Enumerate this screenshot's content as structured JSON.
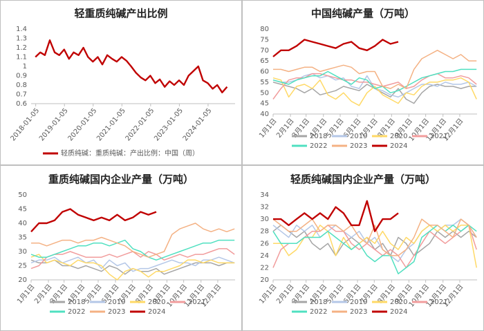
{
  "chart_data": [
    {
      "type": "line",
      "title": "轻重质纯碱产出比例",
      "x": [
        2018.0,
        2018.17,
        2018.33,
        2018.5,
        2018.67,
        2018.83,
        2019.0,
        2019.17,
        2019.33,
        2019.5,
        2019.67,
        2019.83,
        2020.0,
        2020.17,
        2020.33,
        2020.5,
        2020.67,
        2020.83,
        2021.0,
        2021.17,
        2021.33,
        2021.5,
        2021.67,
        2021.83,
        2022.0,
        2022.17,
        2022.33,
        2022.5,
        2022.67,
        2022.83,
        2023.0,
        2023.17,
        2023.33,
        2023.5,
        2023.67,
        2023.83,
        2024.0,
        2024.17,
        2024.33,
        2024.5,
        2024.67
      ],
      "series": [
        {
          "name": "轻质纯碱：重质纯碱：产出比例：中国（周）",
          "color": "#c00000",
          "values": [
            1.1,
            1.15,
            1.12,
            1.28,
            1.15,
            1.12,
            1.18,
            1.08,
            1.15,
            1.12,
            1.2,
            1.1,
            1.05,
            1.1,
            1.02,
            1.12,
            1.08,
            1.05,
            1.1,
            1.06,
            1.0,
            0.93,
            0.88,
            0.85,
            0.9,
            0.82,
            0.86,
            0.78,
            0.84,
            0.8,
            0.85,
            0.8,
            0.9,
            0.95,
            1.0,
            0.85,
            0.82,
            0.76,
            0.8,
            0.72,
            0.78
          ]
        }
      ],
      "xlim": [
        2017.85,
        2024.95
      ],
      "xticks": [
        {
          "value": 2018.01,
          "label": "2018-01-05"
        },
        {
          "value": 2019.01,
          "label": "2019-01-05"
        },
        {
          "value": 2020.01,
          "label": "2020-01-05"
        },
        {
          "value": 2021.01,
          "label": "2021-01-05"
        },
        {
          "value": 2022.01,
          "label": "2022-01-05"
        },
        {
          "value": 2023.01,
          "label": "2023-01-05"
        },
        {
          "value": 2024.01,
          "label": "2024-01-05"
        }
      ],
      "ylim": [
        0.6,
        1.4
      ],
      "yticks": [
        0.6,
        0.7,
        0.8,
        0.9,
        1,
        1.1,
        1.2,
        1.3,
        1.4
      ]
    },
    {
      "type": "line",
      "title": "中国纯碱产量（万吨）",
      "x": [
        1,
        15,
        29,
        43,
        57,
        71,
        85,
        99,
        113,
        127,
        141,
        155,
        169,
        183,
        197,
        211,
        225,
        239,
        253,
        267,
        281,
        295,
        309,
        323,
        337,
        351,
        365
      ],
      "series": [
        {
          "name": "2018",
          "color": "#a5a5a5",
          "values": [
            55,
            54,
            53,
            52,
            50,
            52,
            49,
            50,
            51,
            53,
            52,
            51,
            54,
            52,
            50,
            48,
            52,
            47,
            45,
            50,
            53,
            54,
            53,
            53,
            52,
            53,
            53
          ]
        },
        {
          "name": "2019",
          "color": "#b4c7e7",
          "values": [
            56,
            55,
            55,
            56,
            58,
            59,
            57,
            58,
            56,
            57,
            53,
            52,
            58,
            52,
            51,
            49,
            48,
            50,
            52,
            54,
            54,
            53,
            55,
            54,
            54,
            55,
            53
          ]
        },
        {
          "name": "2020",
          "color": "#ffd966",
          "values": [
            57,
            56,
            48,
            53,
            54,
            52,
            56,
            49,
            47,
            50,
            46,
            44,
            50,
            53,
            49,
            47,
            45,
            50,
            49,
            53,
            55,
            55,
            56,
            56,
            57,
            55,
            47
          ]
        },
        {
          "name": "2021",
          "color": "#f19c9c",
          "values": [
            47,
            52,
            56,
            57,
            57,
            59,
            59,
            58,
            57,
            56,
            56,
            55,
            55,
            54,
            53,
            54,
            55,
            52,
            53,
            56,
            58,
            59,
            57,
            57,
            58,
            57,
            54
          ]
        },
        {
          "name": "2022",
          "color": "#4fe0c0",
          "values": [
            56,
            55,
            54,
            56,
            57,
            58,
            58,
            60,
            58,
            56,
            54,
            57,
            56,
            52,
            53,
            50,
            51,
            53,
            55,
            57,
            58,
            59,
            60,
            60,
            61,
            61,
            61
          ]
        },
        {
          "name": "2023",
          "color": "#f4b183",
          "values": [
            61,
            61,
            60,
            61,
            62,
            62,
            60,
            61,
            62,
            63,
            62,
            59,
            60,
            60,
            53,
            52,
            54,
            52,
            61,
            66,
            68,
            70,
            68,
            66,
            68,
            65,
            65
          ]
        },
        {
          "name": "2024",
          "color": "#c00000",
          "values": [
            67,
            70,
            70,
            72,
            75,
            74,
            73,
            72,
            71,
            73,
            74,
            71,
            70,
            72,
            75,
            73,
            74,
            null,
            null,
            null,
            null,
            null,
            null,
            null,
            null,
            null,
            null
          ]
        }
      ],
      "xlim": [
        1,
        366
      ],
      "xticks": [
        {
          "value": 1,
          "label": "1月1日"
        },
        {
          "value": 32,
          "label": "2月1日"
        },
        {
          "value": 60,
          "label": "3月1日"
        },
        {
          "value": 91,
          "label": "4月1日"
        },
        {
          "value": 121,
          "label": "5月1日"
        },
        {
          "value": 152,
          "label": "6月1日"
        },
        {
          "value": 182,
          "label": "7月1日"
        },
        {
          "value": 213,
          "label": "8月1日"
        },
        {
          "value": 244,
          "label": "9月1日"
        },
        {
          "value": 274,
          "label": "10月1日"
        },
        {
          "value": 305,
          "label": "11月1日"
        },
        {
          "value": 335,
          "label": "12月1日"
        }
      ],
      "ylim": [
        40,
        80
      ],
      "yticks": [
        40,
        45,
        50,
        55,
        60,
        65,
        70,
        75,
        80
      ]
    },
    {
      "type": "line",
      "title": "重质纯碱国内企业产量（万吨）",
      "x": [
        1,
        15,
        29,
        43,
        57,
        71,
        85,
        99,
        113,
        127,
        141,
        155,
        169,
        183,
        197,
        211,
        225,
        239,
        253,
        267,
        281,
        295,
        309,
        323,
        337,
        351,
        365
      ],
      "series": [
        {
          "name": "2018",
          "color": "#a5a5a5",
          "values": [
            27,
            26,
            26,
            27,
            25,
            25,
            24,
            25,
            24,
            23,
            25,
            24,
            22,
            24,
            23,
            23,
            24,
            22,
            23,
            24,
            25,
            26,
            26,
            26,
            25,
            26,
            26
          ]
        },
        {
          "name": "2019",
          "color": "#b4c7e7",
          "values": [
            26,
            27,
            27,
            28,
            26,
            27,
            28,
            26,
            27,
            24,
            27,
            25,
            26,
            23,
            24,
            24,
            25,
            26,
            27,
            26,
            26,
            25,
            27,
            27,
            28,
            27,
            26
          ]
        },
        {
          "name": "2020",
          "color": "#ffd966",
          "values": [
            28,
            29,
            26,
            27,
            26,
            25,
            27,
            26,
            26,
            25,
            22,
            20,
            23,
            24,
            23,
            21,
            23,
            23,
            24,
            25,
            27,
            27,
            26,
            27,
            26,
            26,
            26
          ]
        },
        {
          "name": "2021",
          "color": "#f19c9c",
          "values": [
            24,
            25,
            28,
            29,
            29,
            30,
            29,
            28,
            28,
            28,
            29,
            28,
            29,
            30,
            28,
            30,
            29,
            27,
            28,
            29,
            28,
            29,
            29,
            30,
            31,
            31,
            29
          ]
        },
        {
          "name": "2022",
          "color": "#4fe0c0",
          "values": [
            29,
            28,
            28,
            29,
            30,
            31,
            32,
            32,
            33,
            33,
            32,
            33,
            34,
            31,
            30,
            28,
            27,
            28,
            29,
            30,
            31,
            32,
            33,
            33,
            34,
            34,
            34
          ]
        },
        {
          "name": "2023",
          "color": "#f4b183",
          "values": [
            33,
            33,
            32,
            33,
            34,
            34,
            33,
            34,
            34,
            35,
            34,
            33,
            32,
            30,
            29,
            28,
            29,
            30,
            36,
            38,
            39,
            40,
            38,
            37,
            38,
            37,
            38
          ]
        },
        {
          "name": "2024",
          "color": "#c00000",
          "values": [
            37,
            40,
            40,
            41,
            44,
            45,
            43,
            42,
            41,
            42,
            41,
            43,
            41,
            42,
            44,
            43,
            44,
            null,
            null,
            null,
            null,
            null,
            null,
            null,
            null,
            null,
            null
          ]
        }
      ],
      "xlim": [
        1,
        366
      ],
      "xticks": [
        {
          "value": 1,
          "label": "1月1日"
        },
        {
          "value": 32,
          "label": "2月1日"
        },
        {
          "value": 60,
          "label": "3月1日"
        },
        {
          "value": 91,
          "label": "4月1日"
        },
        {
          "value": 121,
          "label": "5月1日"
        },
        {
          "value": 152,
          "label": "6月1日"
        },
        {
          "value": 182,
          "label": "7月1日"
        },
        {
          "value": 213,
          "label": "8月1日"
        },
        {
          "value": 244,
          "label": "9月1日"
        },
        {
          "value": 274,
          "label": "10月1日"
        },
        {
          "value": 305,
          "label": "11月1日"
        },
        {
          "value": 335,
          "label": "12月1日"
        }
      ],
      "ylim": [
        20,
        50
      ],
      "yticks": [
        20,
        25,
        30,
        35,
        40,
        45,
        50
      ]
    },
    {
      "type": "line",
      "title": "轻质纯碱国内企业产量（万吨）",
      "x": [
        1,
        15,
        29,
        43,
        57,
        71,
        85,
        99,
        113,
        127,
        141,
        155,
        169,
        183,
        197,
        211,
        225,
        239,
        253,
        267,
        281,
        295,
        309,
        323,
        337,
        351,
        365
      ],
      "series": [
        {
          "name": "2018",
          "color": "#a5a5a5",
          "values": [
            28,
            29,
            28,
            27,
            28,
            26,
            25,
            26,
            24,
            26,
            27,
            26,
            27,
            25,
            26,
            24,
            27,
            26,
            24,
            25,
            26,
            28,
            27,
            28,
            27,
            28,
            27
          ]
        },
        {
          "name": "2019",
          "color": "#b4c7e7",
          "values": [
            29,
            28,
            27,
            29,
            28,
            29,
            27,
            28,
            29,
            28,
            27,
            28,
            26,
            27,
            25,
            24,
            23,
            25,
            26,
            28,
            29,
            28,
            29,
            29,
            30,
            29,
            27
          ]
        },
        {
          "name": "2020",
          "color": "#ffd966",
          "values": [
            26,
            26,
            24,
            25,
            27,
            27,
            29,
            28,
            24,
            27,
            25,
            26,
            27,
            26,
            28,
            26,
            25,
            27,
            26,
            28,
            29,
            28,
            29,
            28,
            29,
            29,
            22
          ]
        },
        {
          "name": "2021",
          "color": "#f19c9c",
          "values": [
            22,
            25,
            26,
            26,
            27,
            28,
            28,
            29,
            28,
            28,
            26,
            25,
            26,
            25,
            24,
            25,
            24,
            22,
            24,
            26,
            28,
            27,
            26,
            27,
            28,
            29,
            25
          ]
        },
        {
          "name": "2022",
          "color": "#4fe0c0",
          "values": [
            28,
            26,
            26,
            26,
            27,
            27,
            27,
            28,
            27,
            26,
            25,
            26,
            24,
            23,
            24,
            24,
            21,
            22,
            23,
            27,
            28,
            29,
            28,
            29,
            28,
            29,
            28
          ]
        },
        {
          "name": "2023",
          "color": "#f4b183",
          "values": [
            30,
            29,
            28,
            28,
            29,
            30,
            28,
            29,
            29,
            28,
            29,
            27,
            26,
            29,
            25,
            24,
            24,
            25,
            27,
            30,
            29,
            29,
            28,
            27,
            30,
            29,
            27
          ]
        },
        {
          "name": "2024",
          "color": "#c00000",
          "values": [
            30,
            30,
            29,
            30,
            31,
            30,
            31,
            30,
            32,
            31,
            29,
            29,
            33,
            28,
            30,
            30,
            31,
            null,
            null,
            null,
            null,
            null,
            null,
            null,
            null,
            null,
            null
          ]
        }
      ],
      "xlim": [
        1,
        366
      ],
      "xticks": [
        {
          "value": 1,
          "label": "1月1日"
        },
        {
          "value": 32,
          "label": "2月1日"
        },
        {
          "value": 60,
          "label": "3月1日"
        },
        {
          "value": 91,
          "label": "4月1日"
        },
        {
          "value": 121,
          "label": "5月1日"
        },
        {
          "value": 152,
          "label": "6月1日"
        },
        {
          "value": 182,
          "label": "7月1日"
        },
        {
          "value": 213,
          "label": "8月1日"
        },
        {
          "value": 244,
          "label": "9月1日"
        },
        {
          "value": 274,
          "label": "10月1日"
        },
        {
          "value": 305,
          "label": "11月1日"
        },
        {
          "value": 335,
          "label": "12月1日"
        }
      ],
      "ylim": [
        20,
        34
      ],
      "yticks": [
        20,
        22,
        24,
        26,
        28,
        30,
        32,
        34
      ]
    }
  ]
}
